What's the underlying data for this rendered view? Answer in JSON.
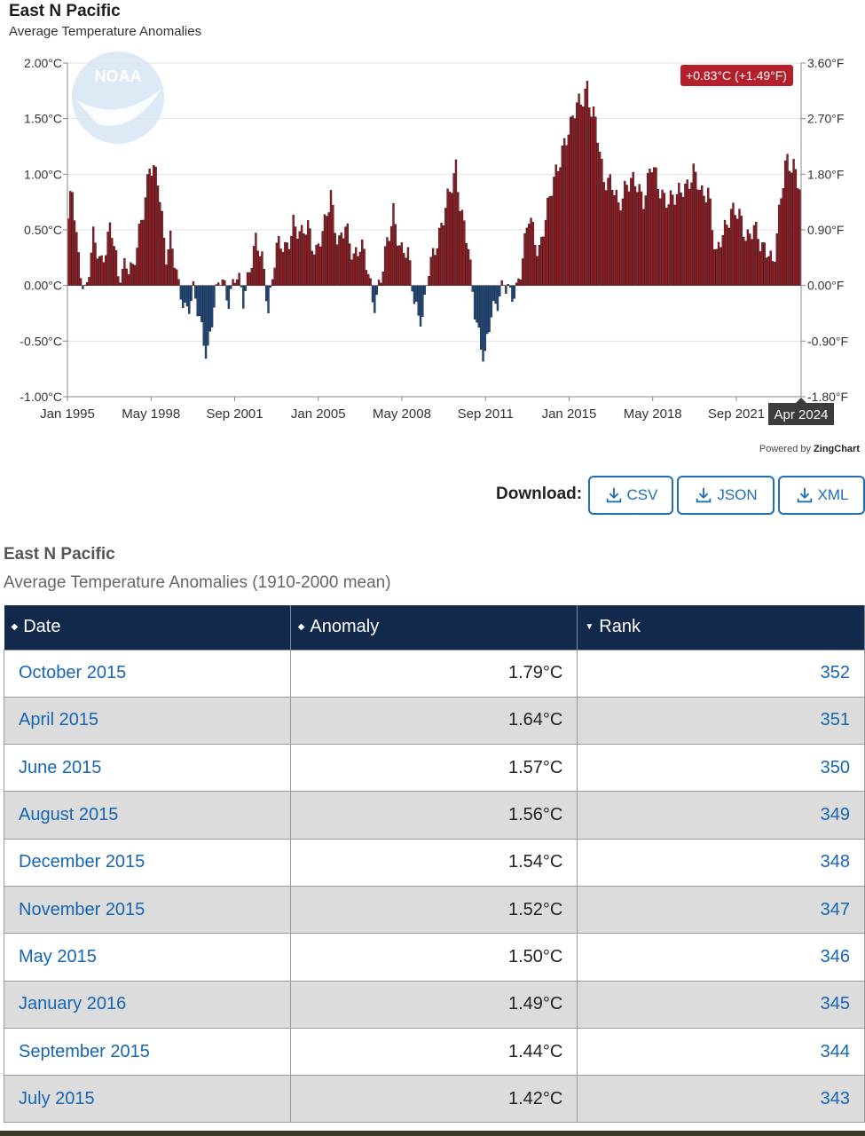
{
  "chart": {
    "title": "East N Pacific",
    "subtitle": "Average Temperature Anomalies",
    "tooltip": "+0.83°C (+1.49°F)",
    "crosshair_label": "Apr 2024",
    "powered_by_prefix": "Powered by",
    "powered_by_brand": "ZingChart",
    "logo_text": "NOAA"
  },
  "colors": {
    "positive_bar": "#a01a24",
    "negative_bar": "#1f4e8c",
    "tooltip_bg": "#b3202b",
    "crosshair_bg": "#3c3c3c",
    "link": "#1565b5",
    "header_bg": "#13294b"
  },
  "chart_data": {
    "type": "bar",
    "x_start": "Jan 1995",
    "x_end": "Apr 2024",
    "x_ticks": [
      "Jan 1995",
      "May 1998",
      "Sep 2001",
      "Jan 2005",
      "May 2008",
      "Sep 2011",
      "Jan 2015",
      "May 2018",
      "Sep 2021"
    ],
    "y_left_ticks": [
      "2.00°C",
      "1.50°C",
      "1.00°C",
      "0.50°C",
      "0.00°C",
      "-0.50°C",
      "-1.00°C"
    ],
    "y_right_ticks": [
      "3.60°F",
      "2.70°F",
      "1.80°F",
      "0.90°F",
      "0.00°F",
      "-0.90°F",
      "-1.80°F"
    ],
    "ylim": [
      -1.0,
      2.0
    ],
    "anchors": [
      [
        1995.0,
        0.6
      ],
      [
        1995.15,
        0.85
      ],
      [
        1995.4,
        0.25
      ],
      [
        1995.7,
        -0.05
      ],
      [
        1996.0,
        0.4
      ],
      [
        1996.3,
        0.2
      ],
      [
        1996.7,
        0.55
      ],
      [
        1997.0,
        0.05
      ],
      [
        1997.3,
        0.25
      ],
      [
        1997.6,
        0.1
      ],
      [
        1998.0,
        0.7
      ],
      [
        1998.25,
        1.1
      ],
      [
        1998.6,
        0.9
      ],
      [
        1998.9,
        0.3
      ],
      [
        1999.1,
        0.45
      ],
      [
        1999.4,
        -0.05
      ],
      [
        1999.7,
        -0.2
      ],
      [
        2000.0,
        -0.05
      ],
      [
        2000.3,
        -0.4
      ],
      [
        2000.55,
        -0.6
      ],
      [
        2000.8,
        -0.2
      ],
      [
        2001.1,
        0.05
      ],
      [
        2001.4,
        -0.1
      ],
      [
        2001.7,
        0.1
      ],
      [
        2002.0,
        -0.15
      ],
      [
        2002.3,
        0.25
      ],
      [
        2002.5,
        0.4
      ],
      [
        2002.8,
        0.15
      ],
      [
        2003.0,
        -0.2
      ],
      [
        2003.3,
        0.35
      ],
      [
        2003.7,
        0.3
      ],
      [
        2004.0,
        0.6
      ],
      [
        2004.3,
        0.4
      ],
      [
        2004.6,
        0.55
      ],
      [
        2004.9,
        0.3
      ],
      [
        2005.2,
        0.45
      ],
      [
        2005.5,
        0.85
      ],
      [
        2005.8,
        0.35
      ],
      [
        2006.1,
        0.5
      ],
      [
        2006.4,
        0.3
      ],
      [
        2006.7,
        0.35
      ],
      [
        2007.0,
        0.1
      ],
      [
        2007.2,
        -0.15
      ],
      [
        2007.5,
        0.05
      ],
      [
        2007.8,
        0.4
      ],
      [
        2008.0,
        0.7
      ],
      [
        2008.3,
        0.3
      ],
      [
        2008.6,
        0.25
      ],
      [
        2008.8,
        -0.05
      ],
      [
        2009.0,
        -0.25
      ],
      [
        2009.2,
        -0.3
      ],
      [
        2009.4,
        0.1
      ],
      [
        2009.7,
        0.4
      ],
      [
        2010.0,
        0.6
      ],
      [
        2010.3,
        0.85
      ],
      [
        2010.5,
        1.1
      ],
      [
        2010.7,
        0.7
      ],
      [
        2011.0,
        0.3
      ],
      [
        2011.2,
        -0.15
      ],
      [
        2011.5,
        -0.5
      ],
      [
        2011.65,
        -0.68
      ],
      [
        2011.9,
        -0.3
      ],
      [
        2012.1,
        -0.15
      ],
      [
        2012.4,
        0.05
      ],
      [
        2012.7,
        -0.15
      ],
      [
        2012.9,
        -0.05
      ],
      [
        2013.1,
        0.2
      ],
      [
        2013.4,
        0.6
      ],
      [
        2013.8,
        0.3
      ],
      [
        2014.0,
        0.55
      ],
      [
        2014.3,
        0.8
      ],
      [
        2014.5,
        1.0
      ],
      [
        2014.8,
        1.3
      ],
      [
        2015.1,
        1.4
      ],
      [
        2015.35,
        1.64
      ],
      [
        2015.75,
        1.79
      ],
      [
        2015.9,
        1.52
      ],
      [
        2016.1,
        1.45
      ],
      [
        2016.4,
        1.0
      ],
      [
        2016.7,
        0.9
      ],
      [
        2017.0,
        0.7
      ],
      [
        2017.3,
        0.95
      ],
      [
        2017.6,
        0.9
      ],
      [
        2018.0,
        0.8
      ],
      [
        2018.3,
        1.1
      ],
      [
        2018.6,
        0.85
      ],
      [
        2019.0,
        0.8
      ],
      [
        2019.3,
        0.75
      ],
      [
        2019.6,
        0.9
      ],
      [
        2020.0,
        1.0
      ],
      [
        2020.3,
        0.8
      ],
      [
        2020.6,
        0.9
      ],
      [
        2020.9,
        0.2
      ],
      [
        2021.2,
        0.5
      ],
      [
        2021.5,
        0.7
      ],
      [
        2021.8,
        0.6
      ],
      [
        2022.1,
        0.45
      ],
      [
        2022.4,
        0.55
      ],
      [
        2022.7,
        0.3
      ],
      [
        2023.0,
        0.35
      ],
      [
        2023.2,
        0.2
      ],
      [
        2023.5,
        0.75
      ],
      [
        2023.7,
        1.15
      ],
      [
        2024.0,
        1.1
      ],
      [
        2024.25,
        0.83
      ]
    ]
  },
  "download": {
    "label": "Download:",
    "buttons": [
      "CSV",
      "JSON",
      "XML"
    ]
  },
  "table": {
    "title": "East N Pacific",
    "subtitle": "Average Temperature Anomalies (1910-2000 mean)",
    "headers": [
      "Date",
      "Anomaly",
      "Rank"
    ],
    "rows": [
      {
        "date": "October 2015",
        "anomaly": "1.79°C",
        "rank": "352"
      },
      {
        "date": "April 2015",
        "anomaly": "1.64°C",
        "rank": "351"
      },
      {
        "date": "June 2015",
        "anomaly": "1.57°C",
        "rank": "350"
      },
      {
        "date": "August 2015",
        "anomaly": "1.56°C",
        "rank": "349"
      },
      {
        "date": "December 2015",
        "anomaly": "1.54°C",
        "rank": "348"
      },
      {
        "date": "November 2015",
        "anomaly": "1.52°C",
        "rank": "347"
      },
      {
        "date": "May 2015",
        "anomaly": "1.50°C",
        "rank": "346"
      },
      {
        "date": "January 2016",
        "anomaly": "1.49°C",
        "rank": "345"
      },
      {
        "date": "September 2015",
        "anomaly": "1.44°C",
        "rank": "344"
      },
      {
        "date": "July 2015",
        "anomaly": "1.42°C",
        "rank": "343"
      }
    ]
  }
}
